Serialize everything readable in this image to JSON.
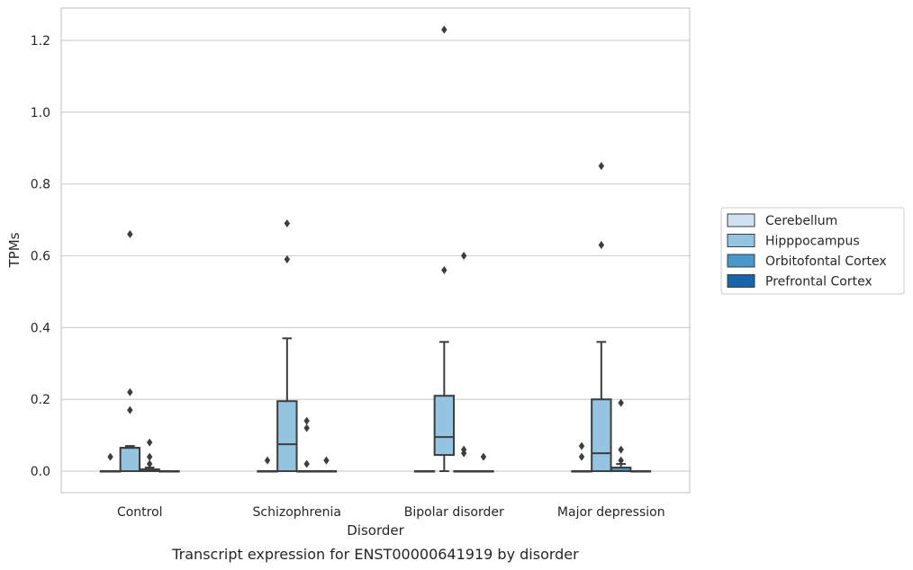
{
  "caption": "Transcript expression for ENST00000641919 by disorder",
  "chart_data": {
    "type": "box",
    "title": "",
    "xlabel": "Disorder",
    "ylabel": "TPMs",
    "ylim": [
      -0.06,
      1.29
    ],
    "yticks": [
      "0.0",
      "0.2",
      "0.4",
      "0.6",
      "0.8",
      "1.0",
      "1.2"
    ],
    "grid": "horizontal",
    "legend_position": "right",
    "categories": [
      "Control",
      "Schizophrenia",
      "Bipolar disorder",
      "Major depression"
    ],
    "series": [
      {
        "name": "Cerebellum",
        "color": "#d0e1f2",
        "boxes": [
          {
            "category": "Control",
            "min": 0,
            "q1": 0,
            "median": 0,
            "q3": 0,
            "max": 0,
            "outliers": [
              0.04
            ]
          },
          {
            "category": "Schizophrenia",
            "min": 0,
            "q1": 0,
            "median": 0,
            "q3": 0,
            "max": 0,
            "outliers": [
              0.03
            ]
          },
          {
            "category": "Bipolar disorder",
            "min": 0,
            "q1": 0,
            "median": 0,
            "q3": 0,
            "max": 0,
            "outliers": []
          },
          {
            "category": "Major depression",
            "min": 0,
            "q1": 0,
            "median": 0,
            "q3": 0,
            "max": 0,
            "outliers": [
              0.04,
              0.07
            ]
          }
        ]
      },
      {
        "name": "Hipppocampus",
        "color": "#94c4df",
        "boxes": [
          {
            "category": "Control",
            "min": 0,
            "q1": 0,
            "median": 0.065,
            "q3": 0.065,
            "max": 0.07,
            "outliers": [
              0.17,
              0.22,
              0.66
            ]
          },
          {
            "category": "Schizophrenia",
            "min": 0,
            "q1": 0,
            "median": 0.075,
            "q3": 0.195,
            "max": 0.37,
            "outliers": [
              0.59,
              0.69
            ]
          },
          {
            "category": "Bipolar disorder",
            "min": 0,
            "q1": 0.045,
            "median": 0.095,
            "q3": 0.21,
            "max": 0.36,
            "outliers": [
              0.56,
              1.23
            ]
          },
          {
            "category": "Major depression",
            "min": 0,
            "q1": 0,
            "median": 0.05,
            "q3": 0.2,
            "max": 0.36,
            "outliers": [
              0.63,
              0.85
            ]
          }
        ]
      },
      {
        "name": "Orbitofontal Cortex",
        "color": "#4a98c9",
        "boxes": [
          {
            "category": "Control",
            "min": 0,
            "q1": 0,
            "median": 0,
            "q3": 0.005,
            "max": 0.01,
            "outliers": [
              0.02,
              0.04,
              0.08
            ]
          },
          {
            "category": "Schizophrenia",
            "min": 0,
            "q1": 0,
            "median": 0,
            "q3": 0,
            "max": 0,
            "outliers": [
              0.02,
              0.12,
              0.14
            ]
          },
          {
            "category": "Bipolar disorder",
            "min": 0,
            "q1": 0,
            "median": 0,
            "q3": 0,
            "max": 0,
            "outliers": [
              0.05,
              0.06,
              0.6
            ]
          },
          {
            "category": "Major depression",
            "min": 0,
            "q1": 0,
            "median": 0,
            "q3": 0.01,
            "max": 0.02,
            "outliers": [
              0.03,
              0.06,
              0.19
            ]
          }
        ]
      },
      {
        "name": "Prefrontal Cortex",
        "color": "#1764ab",
        "boxes": [
          {
            "category": "Control",
            "min": 0,
            "q1": 0,
            "median": 0,
            "q3": 0,
            "max": 0,
            "outliers": []
          },
          {
            "category": "Schizophrenia",
            "min": 0,
            "q1": 0,
            "median": 0,
            "q3": 0,
            "max": 0,
            "outliers": [
              0.03
            ]
          },
          {
            "category": "Bipolar disorder",
            "min": 0,
            "q1": 0,
            "median": 0,
            "q3": 0,
            "max": 0,
            "outliers": [
              0.04
            ]
          },
          {
            "category": "Major depression",
            "min": 0,
            "q1": 0,
            "median": 0,
            "q3": 0,
            "max": 0,
            "outliers": []
          }
        ]
      }
    ]
  }
}
